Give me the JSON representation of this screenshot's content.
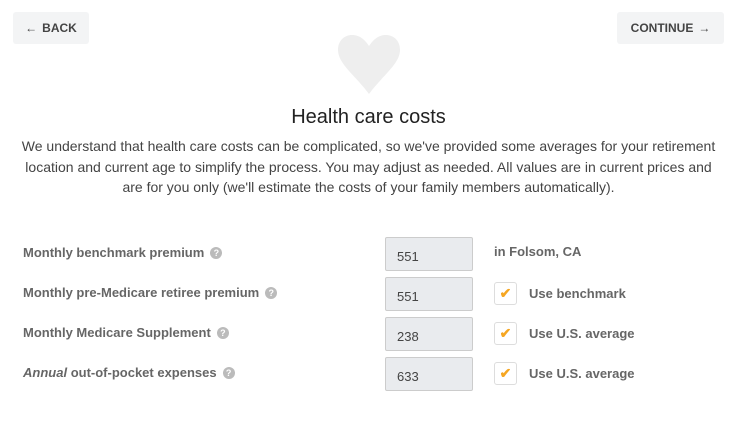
{
  "nav": {
    "back_label": "BACK",
    "continue_label": "CONTINUE"
  },
  "icons": {
    "hero": "heart-icon",
    "back": "arrow-left-icon",
    "continue": "arrow-right-icon",
    "help": "question-circle-icon",
    "check": "checkmark-icon"
  },
  "colors": {
    "heart": "#eeeeee",
    "check": "#f5a623",
    "input_bg": "#e9ebee",
    "button_bg": "#f3f4f5"
  },
  "title": "Health care costs",
  "intro": "We understand that health care costs can be complicated, so we've provided some averages for your retirement location and current age to simplify the process. You may adjust as needed. All values are in current prices and are for you only (we'll estimate the costs of your family members automatically).",
  "rows": [
    {
      "label_em": "",
      "label": "Monthly benchmark premium",
      "value": "551",
      "side": "in Folsom, CA"
    },
    {
      "label_em": "",
      "label": "Monthly pre-Medicare retiree premium",
      "value": "551",
      "checked": true,
      "side": "Use benchmark"
    },
    {
      "label_em": "",
      "label": "Monthly Medicare Supplement",
      "value": "238",
      "checked": true,
      "side": "Use U.S. average"
    },
    {
      "label_em": "Annual",
      "label": "out-of-pocket expenses",
      "value": "633",
      "checked": true,
      "side": "Use U.S. average"
    }
  ]
}
